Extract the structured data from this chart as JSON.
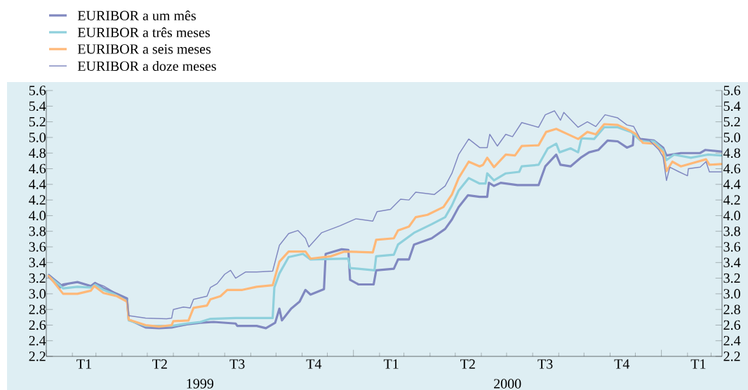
{
  "chart_data": {
    "type": "line",
    "xlim": [
      "1999-01-01",
      "2001-03-14"
    ],
    "xticks": [
      {
        "value": "1999-01-01",
        "label": null
      },
      {
        "value": "1999-02-01",
        "label": null
      },
      {
        "value": "1999-02-15",
        "label": "T1"
      },
      {
        "value": "1999-03-01",
        "label": null
      },
      {
        "value": "1999-04-01",
        "label": null
      },
      {
        "value": "1999-05-01",
        "label": null
      },
      {
        "value": "1999-05-16",
        "label": "T2"
      },
      {
        "value": "1999-06-01",
        "label": null
      },
      {
        "value": "1999-07-01",
        "label": null
      },
      {
        "value": "1999-08-01",
        "label": null
      },
      {
        "value": "1999-08-16",
        "label": "T3"
      },
      {
        "value": "1999-09-01",
        "label": null
      },
      {
        "value": "1999-10-01",
        "label": null
      },
      {
        "value": "1999-11-01",
        "label": null
      },
      {
        "value": "1999-11-15",
        "label": "T4"
      },
      {
        "value": "1999-12-01",
        "label": null
      },
      {
        "value": "2000-01-01",
        "label": null
      },
      {
        "value": "2000-02-01",
        "label": null
      },
      {
        "value": "2000-02-15",
        "label": "T1"
      },
      {
        "value": "2000-03-01",
        "label": null
      },
      {
        "value": "2000-04-01",
        "label": null
      },
      {
        "value": "2000-05-01",
        "label": null
      },
      {
        "value": "2000-05-16",
        "label": "T2"
      },
      {
        "value": "2000-06-01",
        "label": null
      },
      {
        "value": "2000-07-01",
        "label": null
      },
      {
        "value": "2000-08-01",
        "label": null
      },
      {
        "value": "2000-08-16",
        "label": "T3"
      },
      {
        "value": "2000-09-01",
        "label": null
      },
      {
        "value": "2000-10-01",
        "label": null
      },
      {
        "value": "2000-11-01",
        "label": null
      },
      {
        "value": "2000-11-15",
        "label": "T4"
      },
      {
        "value": "2000-12-01",
        "label": null
      },
      {
        "value": "2001-01-01",
        "label": null
      },
      {
        "value": "2001-02-01",
        "label": null
      },
      {
        "value": "2001-02-14",
        "label": "T1"
      },
      {
        "value": "2001-03-01",
        "label": null
      }
    ],
    "ylim": [
      2.2,
      5.6
    ],
    "yticks": [
      2.2,
      2.4,
      2.6,
      2.8,
      {
        "value": 3,
        "label": "3.0"
      },
      3.2,
      3.4,
      3.6,
      3.8,
      {
        "value": 4,
        "label": "4.0"
      },
      4.2,
      4.4,
      4.6,
      4.8,
      {
        "value": 5,
        "label": "5.0"
      },
      5.2,
      5.4,
      5.6
    ],
    "y2lim": [
      2.2,
      5.6
    ],
    "y2ticks": [
      2.2,
      2.4,
      2.6,
      2.8,
      {
        "value": 3,
        "label": "3.0"
      },
      3.2,
      3.4,
      3.6,
      3.8,
      {
        "value": 4,
        "label": "4.0"
      },
      4.2,
      4.4,
      4.6,
      4.8,
      {
        "value": 5,
        "label": "5.0"
      },
      5.2,
      5.4,
      5.6
    ],
    "legend": "top left",
    "annotations": [
      "1999",
      "2000"
    ],
    "series": [
      {
        "name": "EURIBOR a um mês",
        "color": "#8088c0",
        "x": [
          "1999-01-04",
          "1999-01-17",
          "1999-01-21",
          "1999-02-07",
          "1999-02-23",
          "1999-02-28",
          "1999-03-10",
          "1999-03-26",
          "1999-04-07",
          "1999-04-09",
          "1999-04-29",
          "1999-05-15",
          "1999-05-30",
          "1999-06-17",
          "1999-07-03",
          "1999-07-19",
          "1999-08-14",
          "1999-08-16",
          "1999-09-08",
          "1999-09-19",
          "1999-09-30",
          "1999-10-05",
          "1999-10-08",
          "1999-10-19",
          "1999-10-29",
          "1999-11-05",
          "1999-11-11",
          "1999-11-27",
          "1999-11-29",
          "1999-12-18",
          "1999-12-26",
          "1999-12-28",
          "2000-01-07",
          "2000-01-25",
          "2000-01-28",
          "2000-02-18",
          "2000-02-23",
          "2000-03-07",
          "2000-03-13",
          "2000-04-03",
          "2000-04-19",
          "2000-04-27",
          "2000-05-05",
          "2000-05-16",
          "2000-05-30",
          "2000-06-08",
          "2000-06-10",
          "2000-06-16",
          "2000-06-24",
          "2000-07-14",
          "2000-08-08",
          "2000-08-16",
          "2000-08-29",
          "2000-09-03",
          "2000-09-15",
          "2000-09-27",
          "2000-10-07",
          "2000-10-18",
          "2000-10-29",
          "2000-11-10",
          "2000-11-21",
          "2000-11-28",
          "2000-11-29",
          "2000-12-07",
          "2000-12-23",
          "2001-01-03",
          "2001-01-07",
          "2001-01-24",
          "2001-02-16",
          "2001-02-22",
          "2001-03-13"
        ],
        "values": [
          3.22,
          3.08,
          3.12,
          3.15,
          3.1,
          3.14,
          3.07,
          3.0,
          2.94,
          2.67,
          2.57,
          2.56,
          2.57,
          2.61,
          2.63,
          2.64,
          2.62,
          2.59,
          2.59,
          2.56,
          2.63,
          2.81,
          2.66,
          2.81,
          2.9,
          3.05,
          2.99,
          3.06,
          3.51,
          3.57,
          3.56,
          3.18,
          3.12,
          3.12,
          3.3,
          3.32,
          3.44,
          3.44,
          3.63,
          3.71,
          3.83,
          3.95,
          4.11,
          4.26,
          4.24,
          4.24,
          4.42,
          4.38,
          4.42,
          4.39,
          4.39,
          4.63,
          4.78,
          4.65,
          4.63,
          4.74,
          4.81,
          4.84,
          4.96,
          4.95,
          4.87,
          4.9,
          5.04,
          4.98,
          4.96,
          4.87,
          4.77,
          4.8,
          4.8,
          4.84,
          4.82
        ]
      },
      {
        "name": "EURIBOR a três meses",
        "color": "#8fd0dc",
        "x": [
          "1999-01-04",
          "1999-01-21",
          "1999-02-07",
          "1999-02-23",
          "1999-02-28",
          "1999-03-10",
          "1999-03-26",
          "1999-04-07",
          "1999-04-09",
          "1999-04-29",
          "1999-05-30",
          "1999-06-17",
          "1999-07-03",
          "1999-07-15",
          "1999-08-14",
          "1999-09-27",
          "1999-09-29",
          "1999-10-05",
          "1999-10-16",
          "1999-11-02",
          "1999-11-11",
          "1999-12-26",
          "1999-12-28",
          "2000-01-26",
          "2000-01-28",
          "2000-02-18",
          "2000-02-23",
          "2000-03-13",
          "2000-04-03",
          "2000-04-19",
          "2000-04-27",
          "2000-05-05",
          "2000-05-17",
          "2000-05-30",
          "2000-06-06",
          "2000-06-08",
          "2000-06-16",
          "2000-06-30",
          "2000-07-16",
          "2000-07-19",
          "2000-08-08",
          "2000-08-19",
          "2000-08-29",
          "2000-09-02",
          "2000-09-15",
          "2000-09-24",
          "2000-09-28",
          "2000-10-13",
          "2000-10-25",
          "2000-11-10",
          "2000-11-26",
          "2000-12-07",
          "2000-12-23",
          "2001-01-03",
          "2001-01-07",
          "2001-01-16",
          "2001-02-05",
          "2001-02-25",
          "2001-03-13"
        ],
        "values": [
          3.24,
          3.07,
          3.09,
          3.08,
          3.12,
          3.05,
          2.98,
          2.92,
          2.66,
          2.59,
          2.59,
          2.62,
          2.64,
          2.68,
          2.69,
          2.69,
          3.08,
          3.26,
          3.47,
          3.51,
          3.44,
          3.45,
          3.33,
          3.3,
          3.48,
          3.5,
          3.63,
          3.78,
          3.89,
          3.98,
          4.13,
          4.32,
          4.48,
          4.41,
          4.41,
          4.54,
          4.45,
          4.54,
          4.56,
          4.63,
          4.65,
          4.86,
          4.92,
          4.81,
          4.86,
          4.81,
          4.99,
          4.98,
          5.13,
          5.13,
          5.07,
          4.96,
          4.95,
          4.84,
          4.71,
          4.78,
          4.74,
          4.78,
          4.77
        ]
      },
      {
        "name": "EURIBOR a seis meses",
        "color": "#ffb878",
        "x": [
          "1999-01-04",
          "1999-01-21",
          "1999-02-07",
          "1999-02-23",
          "1999-02-27",
          "1999-03-10",
          "1999-03-26",
          "1999-04-07",
          "1999-04-09",
          "1999-04-29",
          "1999-05-15",
          "1999-05-30",
          "1999-06-01",
          "1999-06-19",
          "1999-06-25",
          "1999-07-11",
          "1999-07-15",
          "1999-07-27",
          "1999-08-04",
          "1999-08-22",
          "1999-09-08",
          "1999-09-27",
          "1999-10-05",
          "1999-10-16",
          "1999-11-05",
          "1999-11-11",
          "1999-12-05",
          "1999-12-21",
          "2000-01-24",
          "2000-01-28",
          "2000-02-18",
          "2000-02-23",
          "2000-03-07",
          "2000-03-15",
          "2000-03-29",
          "2000-04-17",
          "2000-04-27",
          "2000-05-05",
          "2000-05-17",
          "2000-05-30",
          "2000-06-03",
          "2000-06-08",
          "2000-06-16",
          "2000-06-30",
          "2000-07-11",
          "2000-07-19",
          "2000-08-08",
          "2000-08-17",
          "2000-08-29",
          "2000-09-10",
          "2000-09-24",
          "2000-10-05",
          "2000-10-15",
          "2000-10-25",
          "2000-11-10",
          "2000-11-26",
          "2000-12-02",
          "2000-12-10",
          "2000-12-23",
          "2001-01-03",
          "2001-01-07",
          "2001-01-14",
          "2001-01-24",
          "2001-02-23",
          "2001-02-27",
          "2001-03-13"
        ],
        "values": [
          3.23,
          3.0,
          3.0,
          3.04,
          3.1,
          3.01,
          2.97,
          2.9,
          2.67,
          2.6,
          2.58,
          2.6,
          2.65,
          2.66,
          2.82,
          2.85,
          2.93,
          2.97,
          3.05,
          3.05,
          3.09,
          3.11,
          3.41,
          3.54,
          3.54,
          3.45,
          3.48,
          3.54,
          3.53,
          3.69,
          3.71,
          3.81,
          3.86,
          3.98,
          4.01,
          4.11,
          4.27,
          4.48,
          4.69,
          4.63,
          4.65,
          4.74,
          4.62,
          4.78,
          4.77,
          4.89,
          4.9,
          5.07,
          5.11,
          5.05,
          4.98,
          5.07,
          5.04,
          5.17,
          5.16,
          5.08,
          5.04,
          4.93,
          4.92,
          4.81,
          4.57,
          4.69,
          4.63,
          4.72,
          4.65,
          4.66
        ]
      },
      {
        "name": "EURIBOR a doze meses",
        "color": "#8088c0",
        "x": [
          "1999-01-04",
          "1999-01-21",
          "1999-01-29",
          "1999-02-07",
          "1999-02-23",
          "1999-02-28",
          "1999-03-10",
          "1999-03-26",
          "1999-04-07",
          "1999-04-09",
          "1999-04-29",
          "1999-05-24",
          "1999-05-30",
          "1999-06-01",
          "1999-06-13",
          "1999-06-21",
          "1999-06-25",
          "1999-07-11",
          "1999-07-15",
          "1999-07-23",
          "1999-08-01",
          "1999-08-08",
          "1999-08-14",
          "1999-08-26",
          "1999-09-08",
          "1999-09-27",
          "1999-10-05",
          "1999-10-16",
          "1999-10-27",
          "1999-11-05",
          "1999-11-09",
          "1999-11-24",
          "1999-12-16",
          "2000-01-04",
          "2000-01-24",
          "2000-01-29",
          "2000-02-14",
          "2000-02-26",
          "2000-03-07",
          "2000-03-15",
          "2000-04-06",
          "2000-04-19",
          "2000-04-27",
          "2000-05-05",
          "2000-05-17",
          "2000-05-30",
          "2000-06-08",
          "2000-06-11",
          "2000-06-20",
          "2000-06-30",
          "2000-07-08",
          "2000-07-19",
          "2000-08-08",
          "2000-08-16",
          "2000-08-27",
          "2000-09-03",
          "2000-09-07",
          "2000-09-24",
          "2000-10-05",
          "2000-10-15",
          "2000-10-26",
          "2000-11-10",
          "2000-11-21",
          "2000-11-29",
          "2000-12-07",
          "2000-12-18",
          "2000-12-29",
          "2001-01-03",
          "2001-01-07",
          "2001-01-11",
          "2001-01-22",
          "2001-02-01",
          "2001-02-02",
          "2001-02-16",
          "2001-02-23",
          "2001-02-27",
          "2001-03-13"
        ],
        "values": [
          3.25,
          3.1,
          3.13,
          3.15,
          3.1,
          3.14,
          3.1,
          3.0,
          2.93,
          2.72,
          2.69,
          2.68,
          2.69,
          2.8,
          2.83,
          2.82,
          2.93,
          2.97,
          3.08,
          3.13,
          3.25,
          3.3,
          3.2,
          3.28,
          3.28,
          3.29,
          3.62,
          3.77,
          3.81,
          3.71,
          3.6,
          3.78,
          3.87,
          3.96,
          3.93,
          4.05,
          4.08,
          4.21,
          4.2,
          4.3,
          4.27,
          4.38,
          4.54,
          4.78,
          4.98,
          4.87,
          4.87,
          5.04,
          4.89,
          5.04,
          5.01,
          5.19,
          5.13,
          5.29,
          5.34,
          5.22,
          5.32,
          5.13,
          5.2,
          5.14,
          5.29,
          5.25,
          5.16,
          5.14,
          4.98,
          4.96,
          4.84,
          4.75,
          4.45,
          4.62,
          4.56,
          4.51,
          4.6,
          4.62,
          4.69,
          4.56,
          4.56
        ]
      }
    ]
  }
}
